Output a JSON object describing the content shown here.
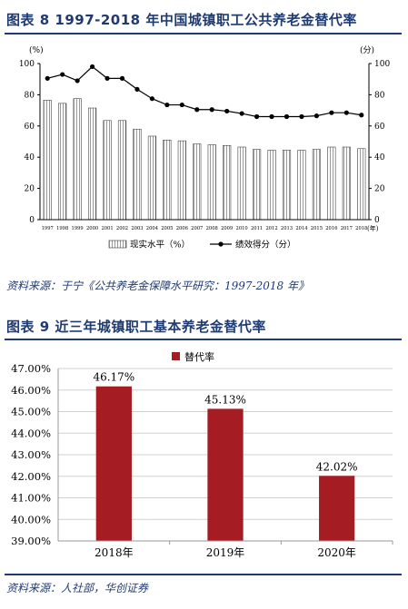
{
  "figure1": {
    "title": "图表 8   1997-2018 年中国城镇职工公共养老金替代率",
    "source": "资料来源：于宁《公共养老金保障水平研究：1997-2018 年》",
    "left_unit": "(%)",
    "right_unit": "(分)",
    "x_unit": "(年)",
    "colors": {
      "bar_fill": "#ffffff",
      "bar_hatch": "#555555",
      "line": "#000000"
    },
    "chart_data": {
      "type": "bar",
      "categories": [
        "1997",
        "1998",
        "1999",
        "2000",
        "2001",
        "2002",
        "2003",
        "2004",
        "2005",
        "2006",
        "2007",
        "2008",
        "2009",
        "2010",
        "2011",
        "2012",
        "2013",
        "2014",
        "2015",
        "2016",
        "2017",
        "2018"
      ],
      "series": [
        {
          "name": "现实水平（%）",
          "type": "bar",
          "axis": "left",
          "values": [
            76.5,
            74.5,
            77.5,
            71.5,
            63.5,
            63.5,
            58,
            53.5,
            51,
            50.5,
            48.5,
            48,
            47.5,
            46.5,
            45,
            44.5,
            44.5,
            44.5,
            45,
            46.5,
            46.5,
            45.5
          ]
        },
        {
          "name": "绩效得分（分）",
          "type": "line",
          "axis": "right",
          "values": [
            90.5,
            93,
            89,
            98,
            90.5,
            90.5,
            83.5,
            77.5,
            73.5,
            73.5,
            70.5,
            70.5,
            69.5,
            68,
            66,
            66,
            66,
            66,
            66.5,
            68.5,
            68.5,
            67
          ]
        }
      ],
      "y_left": {
        "ylim": [
          0,
          100
        ],
        "ticks": [
          0,
          20,
          40,
          60,
          80,
          100
        ]
      },
      "y_right": {
        "ylim": [
          0,
          100
        ],
        "ticks": [
          0,
          20,
          40,
          60,
          80,
          100
        ]
      },
      "legend": "bottom-center",
      "grid": false
    }
  },
  "figure2": {
    "title": "图表 9   近三年城镇职工基本养老金替代率",
    "source": "资料来源：人社部，华创证券",
    "colors": {
      "bar_fill": "#a51d22",
      "grid": "#d0d0d0"
    },
    "chart_data": {
      "type": "bar",
      "categories": [
        "2018年",
        "2019年",
        "2020年"
      ],
      "series": [
        {
          "name": "替代率",
          "values": [
            46.17,
            45.13,
            42.02
          ]
        }
      ],
      "data_labels": [
        "46.17%",
        "45.13%",
        "42.02%"
      ],
      "ylim": [
        39.0,
        47.0
      ],
      "y_ticks": [
        "39.00%",
        "40.00%",
        "41.00%",
        "42.00%",
        "43.00%",
        "44.00%",
        "45.00%",
        "46.00%",
        "47.00%"
      ],
      "legend": "top-center",
      "grid": true
    }
  }
}
